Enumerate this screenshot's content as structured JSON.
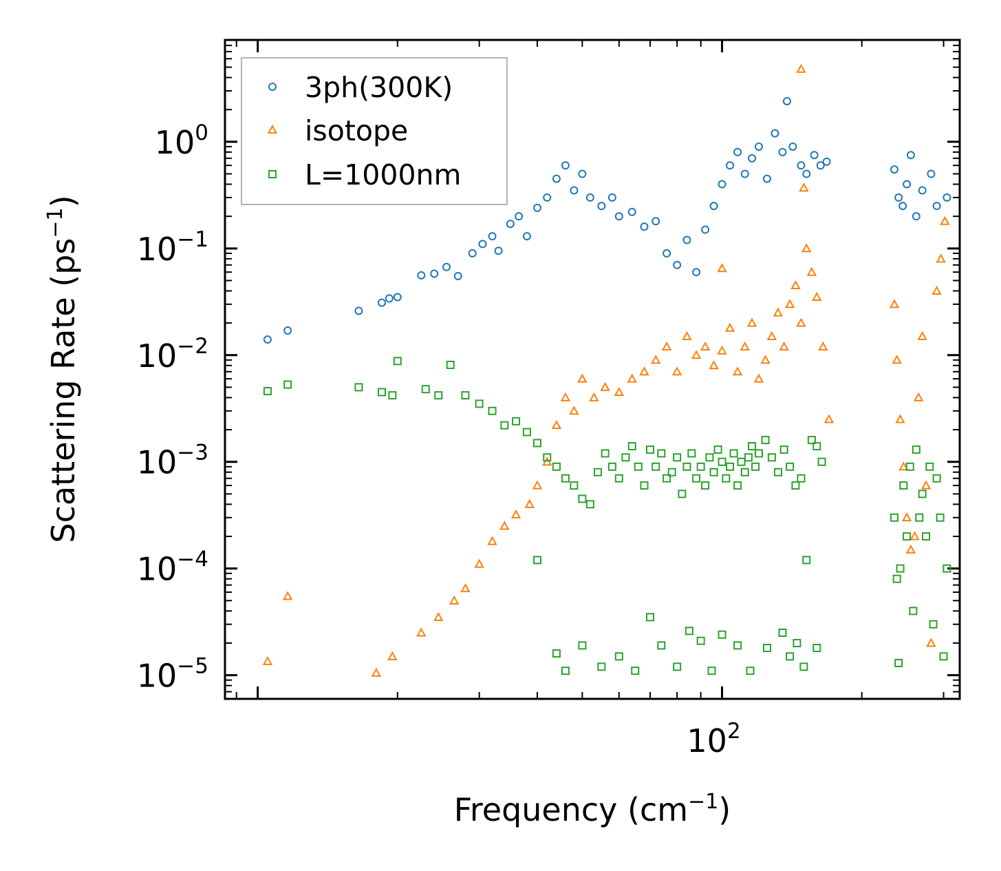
{
  "chart_data": {
    "type": "scatter",
    "title": "",
    "xlabel": "Frequency (cm",
    "xlabel_sup": "−1",
    "xlabel_suffix": ")",
    "ylabel": "Scattering Rate (ps",
    "ylabel_sup": "−1",
    "ylabel_suffix": ")",
    "xscale": "log",
    "yscale": "log",
    "xlim": [
      8.5,
      325
    ],
    "ylim": [
      6e-06,
      9
    ],
    "x_major_ticks": [
      {
        "value": 100,
        "base": "10",
        "exp": "2"
      }
    ],
    "y_major_ticks": [
      {
        "value": 1,
        "base": "10",
        "exp": "0"
      },
      {
        "value": 0.1,
        "base": "10",
        "exp": "−1"
      },
      {
        "value": 0.01,
        "base": "10",
        "exp": "−2"
      },
      {
        "value": 0.001,
        "base": "10",
        "exp": "−3"
      },
      {
        "value": 0.0001,
        "base": "10",
        "exp": "−4"
      },
      {
        "value": 1e-05,
        "base": "10",
        "exp": "−5"
      }
    ],
    "legend_position": "top-left",
    "series": [
      {
        "name": "3ph(300K)",
        "color": "#1f77b4",
        "marker": "circle",
        "points": [
          [
            10.5,
            0.014
          ],
          [
            11.6,
            0.017
          ],
          [
            16.5,
            0.026
          ],
          [
            18.5,
            0.031
          ],
          [
            19.2,
            0.034
          ],
          [
            20.0,
            0.035
          ],
          [
            22.5,
            0.056
          ],
          [
            24.0,
            0.058
          ],
          [
            25.5,
            0.067
          ],
          [
            27.0,
            0.055
          ],
          [
            29.0,
            0.09
          ],
          [
            30.5,
            0.11
          ],
          [
            32.0,
            0.13
          ],
          [
            33.0,
            0.095
          ],
          [
            35.0,
            0.17
          ],
          [
            36.5,
            0.2
          ],
          [
            38.0,
            0.13
          ],
          [
            40.0,
            0.24
          ],
          [
            42.0,
            0.3
          ],
          [
            44.0,
            0.45
          ],
          [
            46.0,
            0.6
          ],
          [
            48.0,
            0.35
          ],
          [
            50.0,
            0.5
          ],
          [
            52.0,
            0.3
          ],
          [
            55.0,
            0.25
          ],
          [
            58.0,
            0.3
          ],
          [
            60.0,
            0.2
          ],
          [
            64.0,
            0.22
          ],
          [
            68.0,
            0.16
          ],
          [
            72.0,
            0.18
          ],
          [
            76.0,
            0.09
          ],
          [
            80.0,
            0.07
          ],
          [
            84.0,
            0.12
          ],
          [
            88.0,
            0.06
          ],
          [
            92.0,
            0.15
          ],
          [
            96.0,
            0.25
          ],
          [
            100.0,
            0.4
          ],
          [
            104.0,
            0.6
          ],
          [
            108.0,
            0.8
          ],
          [
            112.0,
            0.5
          ],
          [
            116.0,
            0.7
          ],
          [
            120.0,
            0.9
          ],
          [
            125.0,
            0.45
          ],
          [
            130.0,
            1.2
          ],
          [
            135.0,
            0.8
          ],
          [
            138.0,
            2.4
          ],
          [
            142.0,
            0.9
          ],
          [
            148.0,
            0.6
          ],
          [
            152.0,
            0.5
          ],
          [
            158.0,
            0.75
          ],
          [
            163.0,
            0.6
          ],
          [
            168.0,
            0.65
          ],
          [
            235.0,
            0.55
          ],
          [
            240.0,
            0.3
          ],
          [
            245.0,
            0.25
          ],
          [
            250.0,
            0.4
          ],
          [
            255.0,
            0.75
          ],
          [
            262.0,
            0.2
          ],
          [
            270.0,
            0.35
          ],
          [
            282.0,
            0.5
          ],
          [
            290.0,
            0.25
          ],
          [
            305.0,
            0.3
          ]
        ]
      },
      {
        "name": "isotope",
        "color": "#ff7f0e",
        "marker": "triangle",
        "points": [
          [
            10.5,
            1.35e-05
          ],
          [
            11.6,
            5.5e-05
          ],
          [
            18.0,
            1.05e-05
          ],
          [
            19.5,
            1.5e-05
          ],
          [
            22.5,
            2.5e-05
          ],
          [
            24.5,
            3.5e-05
          ],
          [
            26.5,
            5e-05
          ],
          [
            28.0,
            6.5e-05
          ],
          [
            30.0,
            0.00011
          ],
          [
            32.0,
            0.00018
          ],
          [
            34.0,
            0.00025
          ],
          [
            36.0,
            0.00032
          ],
          [
            38.5,
            0.0004
          ],
          [
            40.0,
            0.0006
          ],
          [
            42.0,
            0.001
          ],
          [
            44.0,
            0.0022
          ],
          [
            46.0,
            0.004
          ],
          [
            48.0,
            0.003
          ],
          [
            50.0,
            0.006
          ],
          [
            53.0,
            0.004
          ],
          [
            56.0,
            0.005
          ],
          [
            60.0,
            0.0045
          ],
          [
            64.0,
            0.006
          ],
          [
            68.0,
            0.007
          ],
          [
            72.0,
            0.009
          ],
          [
            76.0,
            0.012
          ],
          [
            80.0,
            0.007
          ],
          [
            84.0,
            0.015
          ],
          [
            88.0,
            0.01
          ],
          [
            92.0,
            0.012
          ],
          [
            96.0,
            0.008
          ],
          [
            100.0,
            0.011
          ],
          [
            104.0,
            0.018
          ],
          [
            108.0,
            0.007
          ],
          [
            112.0,
            0.012
          ],
          [
            116.0,
            0.02
          ],
          [
            120.0,
            0.006
          ],
          [
            124.0,
            0.009
          ],
          [
            128.0,
            0.015
          ],
          [
            132.0,
            0.025
          ],
          [
            136.0,
            0.012
          ],
          [
            140.0,
            0.03
          ],
          [
            144.0,
            0.045
          ],
          [
            148.0,
            0.02
          ],
          [
            152.0,
            0.1
          ],
          [
            156.0,
            0.06
          ],
          [
            160.0,
            0.035
          ],
          [
            165.0,
            0.012
          ],
          [
            170.0,
            0.0025
          ],
          [
            100.0,
            0.065
          ],
          [
            148.0,
            4.8
          ],
          [
            150.0,
            0.37
          ],
          [
            235.0,
            0.03
          ],
          [
            238.0,
            0.009
          ],
          [
            242.0,
            0.0025
          ],
          [
            246.0,
            0.0009
          ],
          [
            250.0,
            0.0003
          ],
          [
            255.0,
            0.00015
          ],
          [
            260.0,
            0.0002
          ],
          [
            265.0,
            0.004
          ],
          [
            270.0,
            0.015
          ],
          [
            275.0,
            0.0006
          ],
          [
            282.0,
            2e-05
          ],
          [
            290.0,
            0.04
          ],
          [
            296.0,
            0.08
          ],
          [
            302.0,
            0.18
          ]
        ]
      },
      {
        "name": "L=1000nm",
        "color": "#2ca02c",
        "marker": "square",
        "points": [
          [
            10.5,
            0.0046
          ],
          [
            11.6,
            0.0053
          ],
          [
            16.5,
            0.005
          ],
          [
            18.5,
            0.0045
          ],
          [
            19.5,
            0.0042
          ],
          [
            20.0,
            0.0088
          ],
          [
            23.0,
            0.0048
          ],
          [
            24.5,
            0.0042
          ],
          [
            26.0,
            0.0081
          ],
          [
            28.0,
            0.0042
          ],
          [
            30.0,
            0.0035
          ],
          [
            32.0,
            0.003
          ],
          [
            34.0,
            0.0022
          ],
          [
            36.0,
            0.0024
          ],
          [
            38.0,
            0.0019
          ],
          [
            40.0,
            0.0015
          ],
          [
            40.0,
            0.00012
          ],
          [
            42.0,
            0.0011
          ],
          [
            44.0,
            0.0009
          ],
          [
            46.0,
            0.0007
          ],
          [
            48.0,
            0.0006
          ],
          [
            50.0,
            0.00045
          ],
          [
            52.0,
            0.0004
          ],
          [
            54.0,
            0.0008
          ],
          [
            56.0,
            0.0012
          ],
          [
            58.0,
            0.0009
          ],
          [
            60.0,
            0.0007
          ],
          [
            62.0,
            0.0011
          ],
          [
            64.0,
            0.0014
          ],
          [
            66.0,
            0.0009
          ],
          [
            68.0,
            0.0006
          ],
          [
            70.0,
            0.0013
          ],
          [
            72.0,
            0.0009
          ],
          [
            74.0,
            0.0012
          ],
          [
            76.0,
            0.0007
          ],
          [
            78.0,
            0.0008
          ],
          [
            80.0,
            0.0011
          ],
          [
            82.0,
            0.0005
          ],
          [
            84.0,
            0.0009
          ],
          [
            86.0,
            0.0012
          ],
          [
            88.0,
            0.0007
          ],
          [
            90.0,
            0.0009
          ],
          [
            92.0,
            0.0006
          ],
          [
            94.0,
            0.0011
          ],
          [
            96.0,
            0.0008
          ],
          [
            98.0,
            0.0013
          ],
          [
            100.0,
            0.001
          ],
          [
            102.0,
            0.0007
          ],
          [
            104.0,
            0.0009
          ],
          [
            106.0,
            0.0012
          ],
          [
            108.0,
            0.0006
          ],
          [
            110.0,
            0.001
          ],
          [
            112.0,
            0.0008
          ],
          [
            114.0,
            0.0011
          ],
          [
            116.0,
            0.0014
          ],
          [
            118.0,
            0.0009
          ],
          [
            120.0,
            0.0012
          ],
          [
            124.0,
            0.0016
          ],
          [
            128.0,
            0.0011
          ],
          [
            132.0,
            0.0008
          ],
          [
            136.0,
            0.0013
          ],
          [
            140.0,
            0.0009
          ],
          [
            144.0,
            0.0006
          ],
          [
            148.0,
            0.0007
          ],
          [
            152.0,
            0.00012
          ],
          [
            156.0,
            0.0016
          ],
          [
            160.0,
            0.0014
          ],
          [
            164.0,
            0.001
          ],
          [
            44.0,
            1.6e-05
          ],
          [
            46.0,
            1.1e-05
          ],
          [
            50.0,
            1.9e-05
          ],
          [
            55.0,
            1.2e-05
          ],
          [
            60.0,
            1.5e-05
          ],
          [
            65.0,
            1.1e-05
          ],
          [
            70.0,
            3.5e-05
          ],
          [
            74.0,
            1.9e-05
          ],
          [
            80.0,
            1.2e-05
          ],
          [
            85.0,
            2.6e-05
          ],
          [
            90.0,
            2.1e-05
          ],
          [
            95.0,
            1.1e-05
          ],
          [
            100.0,
            2.4e-05
          ],
          [
            108.0,
            1.9e-05
          ],
          [
            115.0,
            1.1e-05
          ],
          [
            125.0,
            1.8e-05
          ],
          [
            135.0,
            2.5e-05
          ],
          [
            140.0,
            1.5e-05
          ],
          [
            145.0,
            2e-05
          ],
          [
            150.0,
            1.2e-05
          ],
          [
            160.0,
            1.8e-05
          ],
          [
            235.0,
            0.0003
          ],
          [
            238.0,
            8e-05
          ],
          [
            240.0,
            1.3e-05
          ],
          [
            242.0,
            0.0001
          ],
          [
            246.0,
            0.0006
          ],
          [
            250.0,
            0.0002
          ],
          [
            254.0,
            0.0009
          ],
          [
            258.0,
            4e-05
          ],
          [
            262.0,
            0.0013
          ],
          [
            266.0,
            0.0003
          ],
          [
            270.0,
            0.0005
          ],
          [
            275.0,
            0.0002
          ],
          [
            280.0,
            0.0009
          ],
          [
            285.0,
            3e-05
          ],
          [
            290.0,
            0.0007
          ],
          [
            295.0,
            0.0003
          ],
          [
            300.0,
            1.5e-05
          ],
          [
            305.0,
            0.0001
          ]
        ]
      }
    ]
  }
}
